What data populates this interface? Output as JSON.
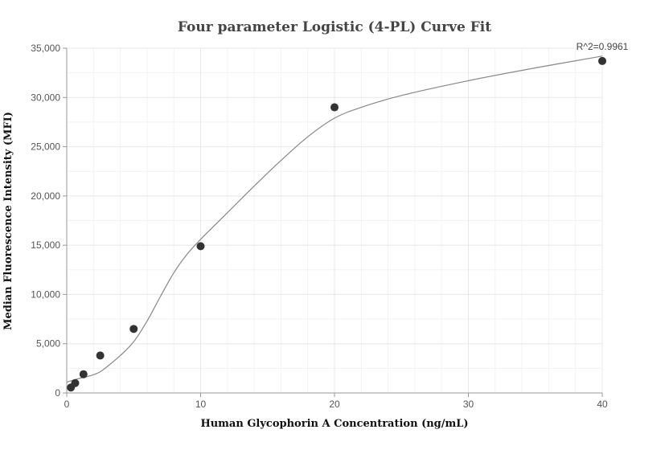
{
  "chart_data": {
    "type": "scatter",
    "title": "Four parameter Logistic (4-PL) Curve Fit",
    "xlabel": "Human Glycophorin A Concentration (ng/mL)",
    "ylabel": "Median Fluorescence Intensity (MFI)",
    "xlim": [
      0,
      40
    ],
    "ylim": [
      0,
      35000
    ],
    "x_ticks": [
      0,
      10,
      20,
      30,
      40
    ],
    "y_ticks": [
      0,
      5000,
      10000,
      15000,
      20000,
      25000,
      30000,
      35000
    ],
    "x_tick_labels": [
      "0",
      "10",
      "20",
      "30",
      "40"
    ],
    "y_tick_labels": [
      "0",
      "5,000",
      "10,000",
      "15,000",
      "20,000",
      "25,000",
      "30,000",
      "35,000"
    ],
    "grid": true,
    "annotation": "R^2=0.9961",
    "colors": {
      "points": "#333333",
      "curve": "#888888",
      "grid": "#e8e8e8"
    },
    "points": [
      {
        "x": 0.31,
        "y": 550
      },
      {
        "x": 0.63,
        "y": 1000
      },
      {
        "x": 1.25,
        "y": 1900
      },
      {
        "x": 2.5,
        "y": 3800
      },
      {
        "x": 5,
        "y": 6500
      },
      {
        "x": 10,
        "y": 14900
      },
      {
        "x": 20,
        "y": 29000
      },
      {
        "x": 40,
        "y": 33700
      }
    ],
    "fit_curve": [
      {
        "x": 0,
        "y": 1100
      },
      {
        "x": 0.5,
        "y": 1300
      },
      {
        "x": 1,
        "y": 1500
      },
      {
        "x": 1.5,
        "y": 1650
      },
      {
        "x": 2,
        "y": 1850
      },
      {
        "x": 2.5,
        "y": 2150
      },
      {
        "x": 3,
        "y": 2650
      },
      {
        "x": 4,
        "y": 3800
      },
      {
        "x": 5,
        "y": 5200
      },
      {
        "x": 6,
        "y": 7300
      },
      {
        "x": 7,
        "y": 9800
      },
      {
        "x": 8,
        "y": 12200
      },
      {
        "x": 9,
        "y": 14100
      },
      {
        "x": 10,
        "y": 15600
      },
      {
        "x": 12,
        "y": 18300
      },
      {
        "x": 14,
        "y": 21000
      },
      {
        "x": 16,
        "y": 23600
      },
      {
        "x": 18,
        "y": 26000
      },
      {
        "x": 20,
        "y": 27900
      },
      {
        "x": 22,
        "y": 29000
      },
      {
        "x": 25,
        "y": 30200
      },
      {
        "x": 30,
        "y": 31700
      },
      {
        "x": 35,
        "y": 33000
      },
      {
        "x": 40,
        "y": 34200
      }
    ]
  }
}
